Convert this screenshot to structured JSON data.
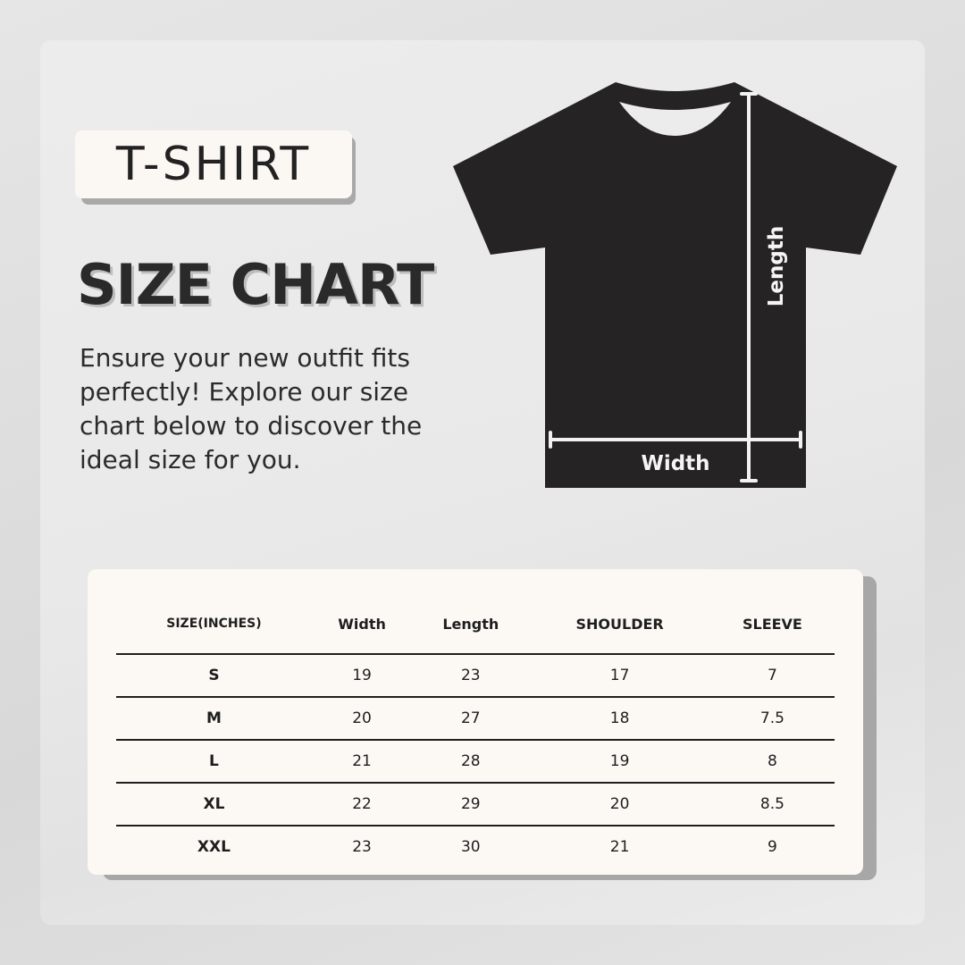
{
  "badge": "T-SHIRT",
  "title": "SIZE CHART",
  "description": "Ensure your new outfit fits perfectly! Explore our size chart below to discover the ideal size for you.",
  "diagram": {
    "length_label": "Length",
    "width_label": "Width",
    "shirt_color": "#252324"
  },
  "table": {
    "headers": [
      "SIZE(INCHES)",
      "Width",
      "Length",
      "SHOULDER",
      "SLEEVE"
    ],
    "rows": [
      [
        "S",
        "19",
        "23",
        "17",
        "7"
      ],
      [
        "M",
        "20",
        "27",
        "18",
        "7.5"
      ],
      [
        "L",
        "21",
        "28",
        "19",
        "8"
      ],
      [
        "XL",
        "22",
        "29",
        "20",
        "8.5"
      ],
      [
        "XXL",
        "23",
        "30",
        "21",
        "9"
      ]
    ]
  }
}
